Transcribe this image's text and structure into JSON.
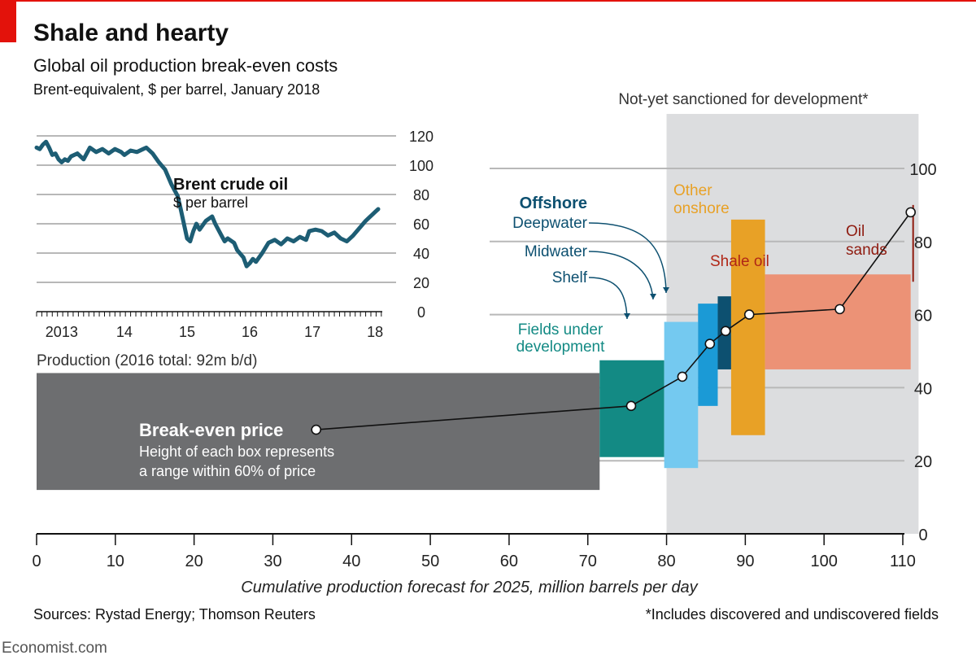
{
  "header": {
    "title": "Shale and hearty",
    "subtitle": "Global oil production break-even costs",
    "unit": "Brent-equivalent, $ per barrel, January 2018"
  },
  "footer": {
    "sources": "Sources: Rystad Energy; Thomson Reuters",
    "footnote": "*Includes discovered and undiscovered fields",
    "brand": "Economist.com"
  },
  "colors": {
    "accent_red": "#e3120b",
    "brent_line": "#1d5d74",
    "producing": "#6d6e70",
    "fields_under_development": "#138a84",
    "shelf": "#74c9f0",
    "midwater": "#1b9ad6",
    "deepwater": "#0d5070",
    "other_onshore": "#e8a126",
    "shale_oil": "#ec9276",
    "oil_sands": "#8f1b10",
    "shade": "#dcdddf"
  },
  "chart_data": [
    {
      "type": "step-area",
      "title": "Production (2016 total: 92m b/d)",
      "xlabel": "Cumulative production forecast for 2025, million barrels per day",
      "ylabel": "",
      "xlim": [
        0,
        120
      ],
      "ylim": [
        0,
        110
      ],
      "x_ticks": [
        0,
        10,
        20,
        30,
        40,
        50,
        60,
        70,
        80,
        90,
        100,
        110
      ],
      "y_ticks": [
        0,
        20,
        40,
        60,
        80,
        100
      ],
      "shaded_region": {
        "x": [
          80,
          112
        ],
        "label": "Not-yet sanctioned for development*"
      },
      "group_label": "Offshore",
      "boxes": [
        {
          "name": "Producing fields",
          "x": [
            0,
            71.5
          ],
          "low": 12,
          "high": 44,
          "price": 28.5,
          "color_key": "producing"
        },
        {
          "name": "Fields under development",
          "x": [
            71.5,
            79.7
          ],
          "low": 21,
          "high": 47.5,
          "price": 35,
          "color_key": "fields_under_development"
        },
        {
          "name": "Shelf",
          "x": [
            79.7,
            84
          ],
          "low": 18,
          "high": 58,
          "price": 43,
          "color_key": "shelf"
        },
        {
          "name": "Midwater",
          "x": [
            84,
            86.5
          ],
          "low": 35,
          "high": 63,
          "price": 52,
          "color_key": "midwater"
        },
        {
          "name": "Deepwater",
          "x": [
            86.5,
            88.2
          ],
          "low": 45,
          "high": 65,
          "price": 55.5,
          "color_key": "deepwater"
        },
        {
          "name": "Other onshore",
          "x": [
            88.2,
            92.5
          ],
          "low": 27,
          "high": 86,
          "price": 60,
          "color_key": "other_onshore"
        },
        {
          "name": "Shale oil",
          "x": [
            92.5,
            111
          ],
          "low": 45,
          "high": 71,
          "price": 61.5,
          "color_key": "shale_oil"
        },
        {
          "name": "Oil sands",
          "x": [
            111,
            112
          ],
          "low": 69,
          "high": 90,
          "price": 88,
          "color_key": "oil_sands"
        }
      ],
      "price_points": [
        {
          "x": 35.5,
          "y": 28.5
        },
        {
          "x": 75.5,
          "y": 35
        },
        {
          "x": 82,
          "y": 43
        },
        {
          "x": 85.5,
          "y": 52
        },
        {
          "x": 87.5,
          "y": 55.5
        },
        {
          "x": 90.5,
          "y": 60
        },
        {
          "x": 102,
          "y": 61.5
        },
        {
          "x": 111,
          "y": 88
        }
      ],
      "annotations": [
        {
          "text": "Break-even price",
          "role": "bold"
        },
        {
          "text": "Height of each box represents",
          "role": "note"
        },
        {
          "text": "a range within 60% of price",
          "role": "note"
        },
        {
          "text": "Fields under",
          "role": "fields"
        },
        {
          "text": "development",
          "role": "fields"
        },
        {
          "text": "Deepwater",
          "role": "offshore"
        },
        {
          "text": "Midwater",
          "role": "offshore"
        },
        {
          "text": "Shelf",
          "role": "offshore"
        },
        {
          "text": "Other",
          "role": "onshore"
        },
        {
          "text": "onshore",
          "role": "onshore"
        },
        {
          "text": "Shale oil",
          "role": "shale"
        },
        {
          "text": "Oil",
          "role": "sands"
        },
        {
          "text": "sands",
          "role": "sands"
        }
      ]
    },
    {
      "type": "line",
      "title": "Brent crude oil",
      "ylabel": "$ per barrel",
      "xlim": [
        2012.6,
        2018.1
      ],
      "ylim": [
        0,
        120
      ],
      "y_ticks": [
        0,
        20,
        40,
        60,
        80,
        100,
        120
      ],
      "x_tick_labels": [
        {
          "label": "2013",
          "x": 2013.0
        },
        {
          "label": "14",
          "x": 2014.0
        },
        {
          "label": "15",
          "x": 2015.0
        },
        {
          "label": "16",
          "x": 2016.0
        },
        {
          "label": "17",
          "x": 2017.0
        },
        {
          "label": "18",
          "x": 2018.0
        }
      ],
      "series": [
        {
          "name": "Brent crude oil",
          "points": [
            [
              2012.6,
              112
            ],
            [
              2012.65,
              111
            ],
            [
              2012.7,
              114
            ],
            [
              2012.75,
              116
            ],
            [
              2012.8,
              112
            ],
            [
              2012.85,
              107
            ],
            [
              2012.9,
              108
            ],
            [
              2012.95,
              104
            ],
            [
              2013.0,
              102
            ],
            [
              2013.05,
              104
            ],
            [
              2013.1,
              103
            ],
            [
              2013.15,
              106
            ],
            [
              2013.25,
              108
            ],
            [
              2013.35,
              104
            ],
            [
              2013.45,
              112
            ],
            [
              2013.55,
              109
            ],
            [
              2013.65,
              111
            ],
            [
              2013.75,
              108
            ],
            [
              2013.85,
              111
            ],
            [
              2013.95,
              109
            ],
            [
              2014.0,
              107
            ],
            [
              2014.1,
              110
            ],
            [
              2014.2,
              109
            ],
            [
              2014.3,
              111
            ],
            [
              2014.35,
              112
            ],
            [
              2014.45,
              108
            ],
            [
              2014.55,
              102
            ],
            [
              2014.65,
              97
            ],
            [
              2014.75,
              87
            ],
            [
              2014.85,
              79
            ],
            [
              2014.9,
              70
            ],
            [
              2014.95,
              60
            ],
            [
              2015.0,
              50
            ],
            [
              2015.05,
              48
            ],
            [
              2015.1,
              55
            ],
            [
              2015.15,
              60
            ],
            [
              2015.2,
              56
            ],
            [
              2015.3,
              62
            ],
            [
              2015.4,
              65
            ],
            [
              2015.45,
              60
            ],
            [
              2015.55,
              52
            ],
            [
              2015.6,
              48
            ],
            [
              2015.65,
              50
            ],
            [
              2015.75,
              47
            ],
            [
              2015.8,
              42
            ],
            [
              2015.9,
              37
            ],
            [
              2015.95,
              31
            ],
            [
              2016.0,
              33
            ],
            [
              2016.05,
              36
            ],
            [
              2016.1,
              34
            ],
            [
              2016.2,
              40
            ],
            [
              2016.3,
              47
            ],
            [
              2016.4,
              49
            ],
            [
              2016.5,
              46
            ],
            [
              2016.6,
              50
            ],
            [
              2016.7,
              48
            ],
            [
              2016.8,
              51
            ],
            [
              2016.9,
              49
            ],
            [
              2016.95,
              55
            ],
            [
              2017.05,
              56
            ],
            [
              2017.15,
              55
            ],
            [
              2017.25,
              52
            ],
            [
              2017.35,
              54
            ],
            [
              2017.45,
              50
            ],
            [
              2017.55,
              48
            ],
            [
              2017.65,
              52
            ],
            [
              2017.75,
              57
            ],
            [
              2017.85,
              62
            ],
            [
              2017.9,
              64
            ],
            [
              2017.95,
              66
            ],
            [
              2018.0,
              68
            ],
            [
              2018.05,
              70
            ]
          ]
        }
      ]
    }
  ]
}
